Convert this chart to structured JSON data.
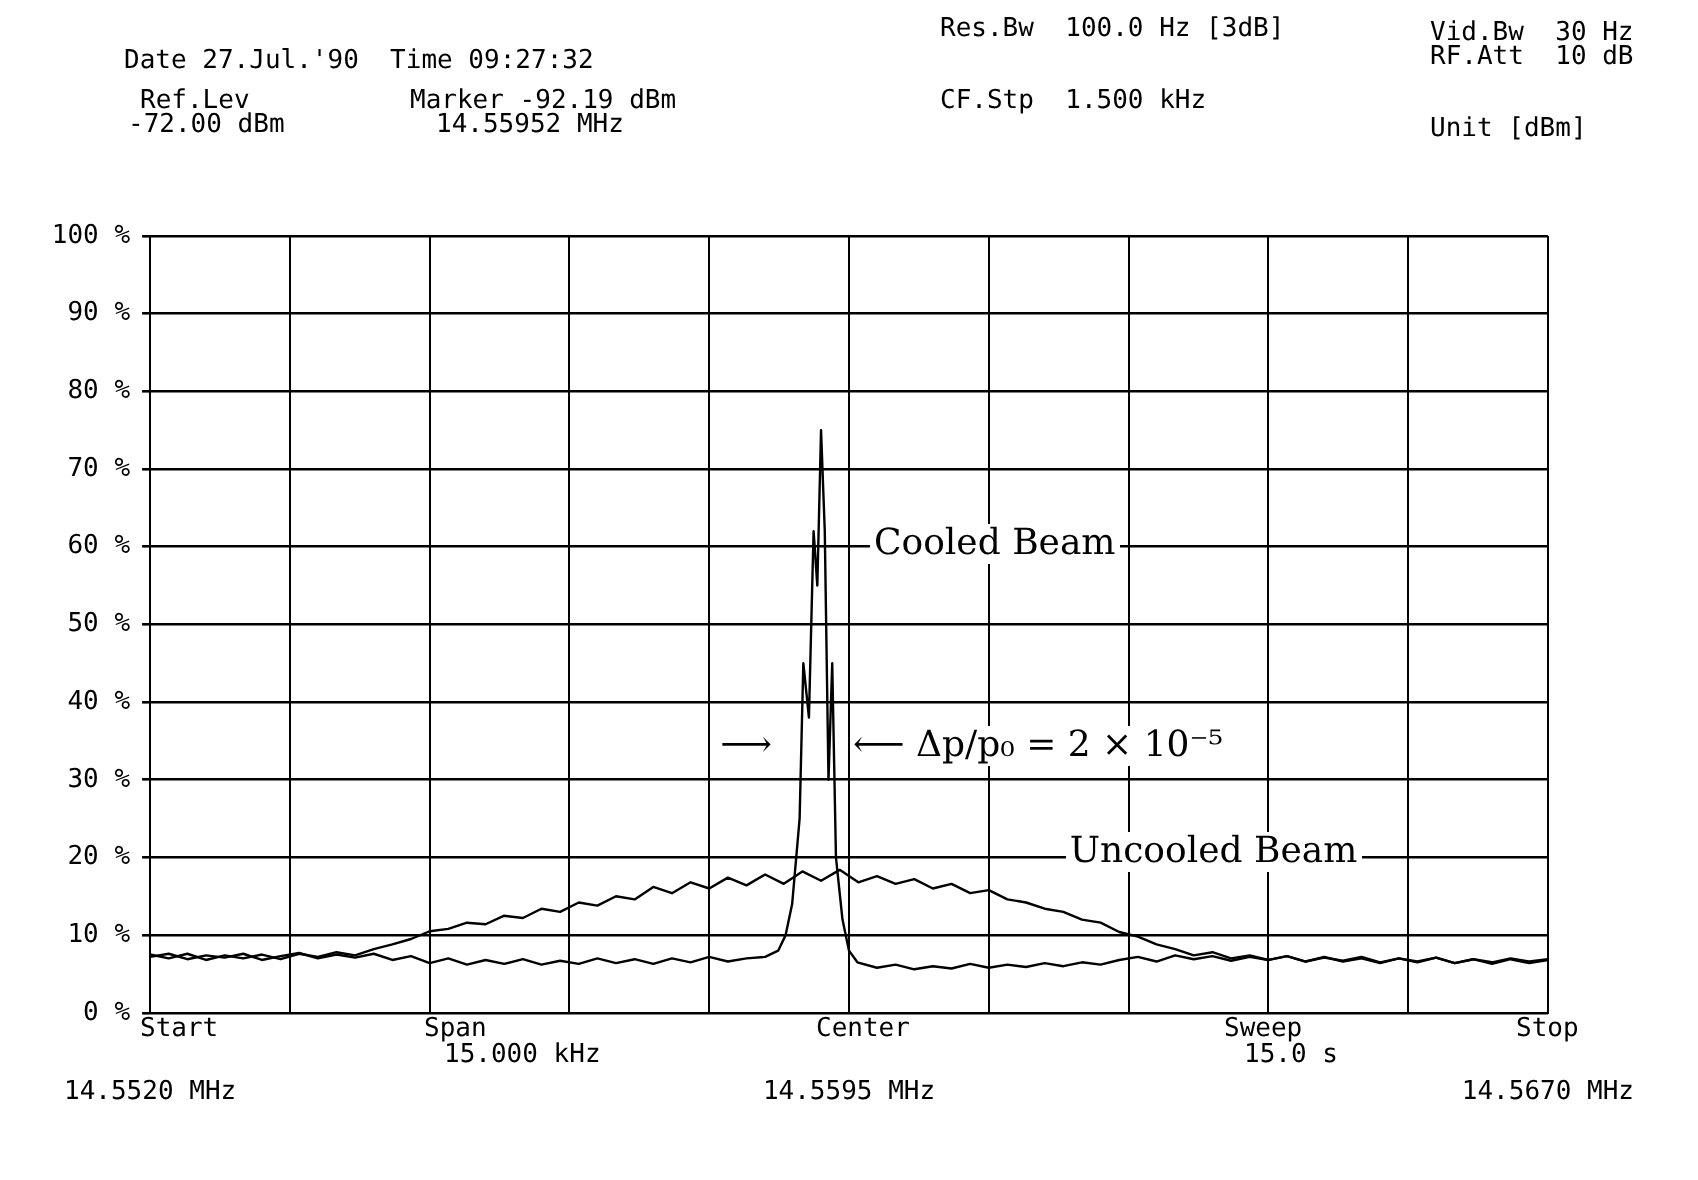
{
  "chart_data": {
    "type": "line",
    "marker": "none",
    "grid": true,
    "legend": false,
    "xlim": [
      14.552,
      14.567
    ],
    "xticks": [
      {
        "value": 14.552,
        "label": "14.5520 MHz"
      },
      {
        "value": 14.5535,
        "label": null
      },
      {
        "value": 14.555,
        "label": null
      },
      {
        "value": 14.5565,
        "label": null
      },
      {
        "value": 14.558,
        "label": null
      },
      {
        "value": 14.5595,
        "label": "14.5595 MHz"
      },
      {
        "value": 14.561,
        "label": null
      },
      {
        "value": 14.5625,
        "label": null
      },
      {
        "value": 14.564,
        "label": null
      },
      {
        "value": 14.5655,
        "label": null
      },
      {
        "value": 14.567,
        "label": "14.5670 MHz"
      }
    ],
    "ylim": [
      0,
      100
    ],
    "yticks": [
      {
        "value": 0,
        "label": "0 %"
      },
      {
        "value": 10,
        "label": "10 %"
      },
      {
        "value": 20,
        "label": "20 %"
      },
      {
        "value": 30,
        "label": "30 %"
      },
      {
        "value": 40,
        "label": "40 %"
      },
      {
        "value": 50,
        "label": "50 %"
      },
      {
        "value": 60,
        "label": "60 %"
      },
      {
        "value": 70,
        "label": "70 %"
      },
      {
        "value": 80,
        "label": "80 %"
      },
      {
        "value": 90,
        "label": "90 %"
      },
      {
        "value": 100,
        "label": "100 %"
      }
    ],
    "series": [
      {
        "color": "#000000",
        "x": [
          14.552,
          14.5522,
          14.5524,
          14.5526,
          14.5528,
          14.553,
          14.5532,
          14.5534,
          14.5536,
          14.5538,
          14.554,
          14.5542,
          14.5544,
          14.5546,
          14.5548,
          14.555,
          14.5552,
          14.5554,
          14.5556,
          14.5558,
          14.556,
          14.5562,
          14.5564,
          14.5566,
          14.5568,
          14.557,
          14.5572,
          14.5574,
          14.5576,
          14.5578,
          14.558,
          14.5582,
          14.5584,
          14.5586,
          14.5588,
          14.559,
          14.5592,
          14.5594,
          14.5596,
          14.5598,
          14.56,
          14.5602,
          14.5604,
          14.5606,
          14.5608,
          14.561,
          14.5612,
          14.5614,
          14.5616,
          14.5618,
          14.562,
          14.5622,
          14.5624,
          14.5626,
          14.5628,
          14.563,
          14.5632,
          14.5634,
          14.5636,
          14.5638,
          14.564,
          14.5642,
          14.5644,
          14.5646,
          14.5648,
          14.565,
          14.5652,
          14.5654,
          14.5656,
          14.5658,
          14.566,
          14.5662,
          14.5664,
          14.5666,
          14.5668,
          14.567
        ],
        "values": [
          7.5,
          7.0,
          7.6,
          6.8,
          7.4,
          7.0,
          7.5,
          6.9,
          7.6,
          7.2,
          7.8,
          7.4,
          8.2,
          8.8,
          9.5,
          10.5,
          10.8,
          11.6,
          11.4,
          12.5,
          12.2,
          13.4,
          13.0,
          14.2,
          13.8,
          15.0,
          14.6,
          16.2,
          15.4,
          16.8,
          16.0,
          17.4,
          16.4,
          17.8,
          16.6,
          18.2,
          17.0,
          18.4,
          16.8,
          17.6,
          16.6,
          17.2,
          16.0,
          16.6,
          15.4,
          15.8,
          14.6,
          14.2,
          13.4,
          13.0,
          12.0,
          11.6,
          10.4,
          9.8,
          8.8,
          8.2,
          7.4,
          7.8,
          7.0,
          7.4,
          6.8,
          7.3,
          6.6,
          7.2,
          6.6,
          7.0,
          6.4,
          7.0,
          6.5,
          7.1,
          6.4,
          6.9,
          6.3,
          6.9,
          6.4,
          6.8
        ]
      },
      {
        "color": "#000000",
        "x": [
          14.552,
          14.5522,
          14.5524,
          14.5526,
          14.5528,
          14.553,
          14.5532,
          14.5534,
          14.5536,
          14.5538,
          14.554,
          14.5542,
          14.5544,
          14.5546,
          14.5548,
          14.555,
          14.5552,
          14.5554,
          14.5556,
          14.5558,
          14.556,
          14.5562,
          14.5564,
          14.5566,
          14.5568,
          14.557,
          14.5572,
          14.5574,
          14.5576,
          14.5578,
          14.558,
          14.5582,
          14.5584,
          14.5586,
          14.55874,
          14.55882,
          14.55889,
          14.55897,
          14.55901,
          14.55907,
          14.55912,
          14.55916,
          14.5592,
          14.55924,
          14.55928,
          14.55932,
          14.55936,
          14.55943,
          14.5595,
          14.55959,
          14.5598,
          14.56,
          14.5602,
          14.5604,
          14.5606,
          14.5608,
          14.561,
          14.5612,
          14.5614,
          14.5616,
          14.5618,
          14.562,
          14.5622,
          14.5624,
          14.5626,
          14.5628,
          14.563,
          14.5632,
          14.5634,
          14.5636,
          14.5638,
          14.564,
          14.5642,
          14.5644,
          14.5646,
          14.5648,
          14.565,
          14.5652,
          14.5654,
          14.5656,
          14.5658,
          14.566,
          14.5662,
          14.5664,
          14.5666,
          14.5668,
          14.567
        ],
        "values": [
          7.2,
          7.6,
          6.9,
          7.4,
          7.1,
          7.6,
          6.8,
          7.3,
          7.7,
          7.0,
          7.5,
          7.1,
          7.6,
          6.8,
          7.3,
          6.4,
          7.0,
          6.2,
          6.8,
          6.3,
          6.9,
          6.2,
          6.7,
          6.3,
          7.0,
          6.4,
          6.9,
          6.3,
          7.0,
          6.5,
          7.2,
          6.6,
          7.0,
          7.2,
          8,
          10,
          14,
          25,
          45,
          38,
          62,
          55,
          75,
          62,
          30,
          45,
          20,
          12,
          8,
          6.5,
          5.8,
          6.2,
          5.6,
          6.0,
          5.7,
          6.3,
          5.8,
          6.2,
          5.9,
          6.4,
          6.0,
          6.5,
          6.2,
          6.8,
          7.2,
          6.6,
          7.4,
          6.9,
          7.3,
          6.7,
          7.2,
          6.8,
          7.3,
          6.6,
          7.1,
          6.7,
          7.2,
          6.5,
          7.0,
          6.6,
          7.1,
          6.4,
          6.9,
          6.5,
          7.0,
          6.6,
          6.9
        ]
      }
    ],
    "annotations": [
      "Date 27.Jul.'90  Time 09:27:32",
      "Ref.Lev",
      "-72.00 dBm",
      "Marker -92.19 dBm",
      "14.55952 MHz",
      "Res.Bw  100.0 Hz [3dB]",
      "CF.Stp  1.500 kHz",
      "Vid.Bw  30 Hz",
      "RF.Att  10 dB",
      "Unit [dBm]",
      "Start",
      "Span",
      "15.000 kHz",
      "Center",
      "Sweep",
      "15.0 s",
      "Stop",
      "Cooled Beam",
      "Uncooled Beam",
      "⟶",
      "⟵ Δp/p₀ = 2 × 10⁻⁵"
    ]
  }
}
